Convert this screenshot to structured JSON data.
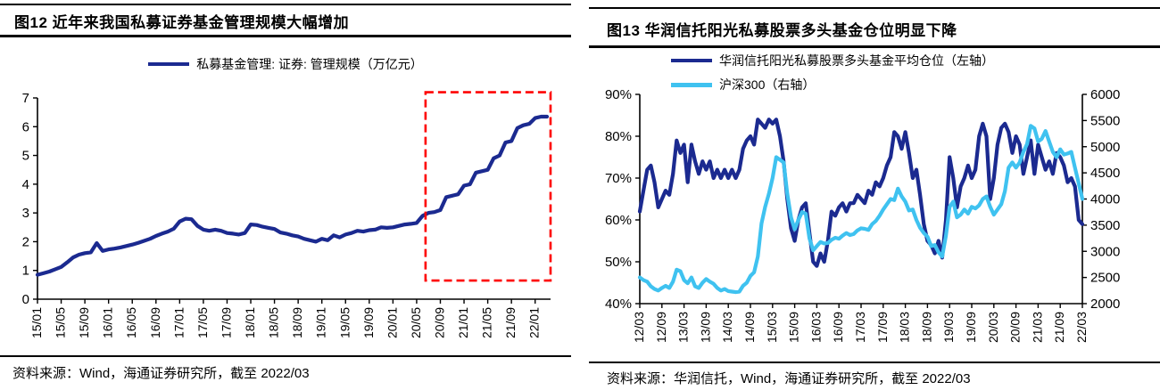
{
  "panels": [
    {
      "title": "图12 近年来我国私募证券基金管理规模大幅增加",
      "source": "资料来源：Wind，海通证券研究所，截至 2022/03"
    },
    {
      "title": "图13 华润信托阳光私募股票多头基金仓位明显下降",
      "source": "资料来源：华润信托，Wind，海通证券研究所，截至 2022/03"
    }
  ],
  "chart_data": [
    {
      "id": "fig12",
      "type": "line",
      "title": "图12 近年来我国私募证券基金管理规模大幅增加",
      "x_start": "15/01",
      "x_interval": "monthly",
      "x_tick_labels": [
        "15/01",
        "15/05",
        "15/09",
        "16/01",
        "16/05",
        "16/09",
        "17/01",
        "17/05",
        "17/09",
        "18/01",
        "18/05",
        "18/09",
        "19/01",
        "19/05",
        "19/09",
        "20/01",
        "20/05",
        "20/09",
        "21/01",
        "21/05",
        "21/09",
        "22/01"
      ],
      "x_tick_every_months": 4,
      "y_left": {
        "min": 0,
        "max": 7,
        "labels": [
          "0",
          "1",
          "2",
          "3",
          "4",
          "5",
          "6",
          "7"
        ]
      },
      "grid": false,
      "legend_position": "top-center",
      "series": [
        {
          "name": "私募基金管理: 证券: 管理规模（万亿元）",
          "color": "#1b2a90",
          "axis": "left",
          "values": [
            0.85,
            0.9,
            0.96,
            1.04,
            1.12,
            1.28,
            1.45,
            1.55,
            1.6,
            1.63,
            1.95,
            1.68,
            1.73,
            1.76,
            1.8,
            1.85,
            1.9,
            1.96,
            2.03,
            2.1,
            2.2,
            2.28,
            2.35,
            2.45,
            2.7,
            2.8,
            2.78,
            2.55,
            2.42,
            2.38,
            2.42,
            2.38,
            2.3,
            2.28,
            2.25,
            2.3,
            2.6,
            2.58,
            2.52,
            2.48,
            2.44,
            2.32,
            2.28,
            2.22,
            2.18,
            2.1,
            2.05,
            2.0,
            2.1,
            2.05,
            2.22,
            2.15,
            2.25,
            2.3,
            2.38,
            2.35,
            2.4,
            2.42,
            2.5,
            2.48,
            2.5,
            2.55,
            2.6,
            2.62,
            2.65,
            2.9,
            3.0,
            3.03,
            3.1,
            3.55,
            3.6,
            3.65,
            3.95,
            4.0,
            4.4,
            4.45,
            4.5,
            4.9,
            5.0,
            5.45,
            5.5,
            5.95,
            6.05,
            6.1,
            6.3,
            6.35,
            6.35
          ]
        }
      ],
      "highlight_box": {
        "style": "dashed",
        "color": "#fe0000",
        "month_from": 65.5,
        "month_to": 86.6,
        "value_from": 0.65,
        "value_to": 7.2
      }
    },
    {
      "id": "fig13",
      "type": "line",
      "title": "图13 华润信托阳光私募股票多头基金仓位明显下降",
      "x_start": "12/03",
      "x_interval": "monthly",
      "x_tick_labels": [
        "12/03",
        "12/09",
        "13/03",
        "13/09",
        "14/03",
        "14/09",
        "15/03",
        "15/09",
        "16/03",
        "16/09",
        "17/03",
        "17/09",
        "18/03",
        "18/09",
        "19/03",
        "19/09",
        "20/03",
        "20/09",
        "21/03",
        "21/09",
        "22/03"
      ],
      "x_tick_every_months": 6,
      "y_left": {
        "min": 40,
        "max": 90,
        "labels": [
          "40%",
          "50%",
          "60%",
          "70%",
          "80%",
          "90%"
        ]
      },
      "y_right": {
        "min": 2000,
        "max": 6000,
        "labels": [
          "2000",
          "2500",
          "3000",
          "3500",
          "4000",
          "4500",
          "5000",
          "5500",
          "6000"
        ]
      },
      "grid": false,
      "legend_position": "top-left",
      "series": [
        {
          "name": "华润信托阳光私募股票多头基金平均仓位（左轴）",
          "color": "#1b2a90",
          "axis": "left",
          "unit": "%",
          "values": [
            62,
            67,
            72,
            73,
            69,
            63,
            65,
            67,
            66,
            71,
            79,
            76,
            78,
            69,
            78,
            74,
            71,
            74,
            72,
            74,
            70,
            72,
            70,
            72,
            70,
            72,
            70,
            72,
            77,
            79,
            80,
            78,
            84,
            83,
            82,
            84,
            83,
            84,
            80,
            74,
            65,
            58,
            55,
            60,
            63,
            64,
            57,
            50,
            49,
            52,
            50,
            55,
            62,
            61,
            63,
            64,
            62,
            64,
            64,
            66,
            65,
            64,
            67,
            66,
            69,
            68,
            70,
            73,
            75,
            81,
            80,
            77,
            81,
            76,
            70,
            72,
            66,
            59,
            55,
            54,
            52,
            55,
            51,
            60,
            75,
            70,
            63,
            68,
            70,
            73,
            70,
            72,
            80,
            83,
            80,
            65,
            70,
            78,
            82,
            83,
            81,
            76,
            80,
            78,
            71,
            75,
            79,
            71,
            78,
            75,
            72,
            74,
            71,
            76,
            75,
            73,
            69,
            70,
            68,
            60,
            59
          ]
        },
        {
          "name": "沪深300（右轴）",
          "color": "#3fc2f0",
          "axis": "right",
          "values": [
            2500,
            2450,
            2420,
            2330,
            2280,
            2250,
            2300,
            2340,
            2300,
            2420,
            2650,
            2620,
            2450,
            2390,
            2500,
            2330,
            2300,
            2400,
            2470,
            2420,
            2380,
            2300,
            2250,
            2280,
            2240,
            2230,
            2220,
            2230,
            2340,
            2400,
            2530,
            2600,
            2900,
            3530,
            3850,
            4100,
            4400,
            4800,
            4750,
            4700,
            4100,
            3650,
            3420,
            3600,
            3750,
            3720,
            3250,
            3020,
            3100,
            3180,
            3150,
            3160,
            3220,
            3260,
            3240,
            3300,
            3350,
            3310,
            3330,
            3400,
            3440,
            3430,
            3410,
            3520,
            3580,
            3680,
            3800,
            3900,
            4000,
            3980,
            4200,
            4050,
            3950,
            3780,
            3800,
            3600,
            3450,
            3350,
            3280,
            3100,
            3120,
            2980,
            2900,
            3300,
            3850,
            3950,
            3650,
            3700,
            3800,
            3720,
            3850,
            3820,
            3880,
            4000,
            4050,
            3850,
            3700,
            3800,
            3900,
            4150,
            4600,
            4700,
            4600,
            4700,
            4900,
            5050,
            5400,
            5350,
            5100,
            5150,
            5300,
            5100,
            4900,
            4800,
            4950,
            4850,
            4870,
            4900,
            4600,
            4300,
            4000
          ]
        }
      ]
    }
  ]
}
